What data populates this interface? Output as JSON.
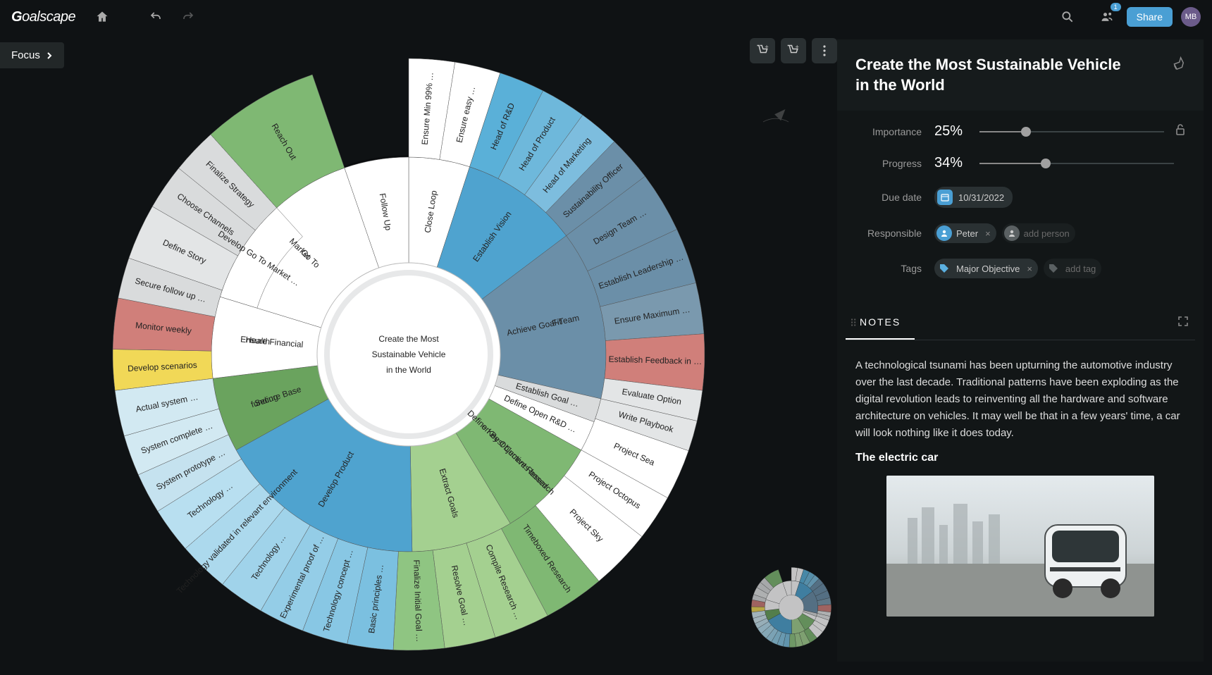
{
  "header": {
    "logo": "Goalscape",
    "share_label": "Share",
    "user_initials": "MB",
    "notif_count": "1"
  },
  "focus_label": "Focus",
  "panel": {
    "title": "Create the Most Sustainable Vehicle in the World",
    "importance_label": "Importance",
    "importance_value": "25%",
    "importance_pct": 25,
    "progress_label": "Progress",
    "progress_value": "34%",
    "progress_pct": 34,
    "due_date_label": "Due date",
    "due_date": "10/31/2022",
    "responsible_label": "Responsible",
    "responsible": [
      {
        "name": "Peter"
      }
    ],
    "responsible_placeholder": "add person",
    "tags_label": "Tags",
    "tags": [
      {
        "name": "Major Objective",
        "color": "#5bb0e0"
      }
    ],
    "tags_placeholder": "add tag",
    "tabs": [
      {
        "label": "NOTES",
        "active": true
      }
    ]
  },
  "notes": {
    "body": "A technological tsunami has been upturning the automotive industry over the last decade. Traditional patterns have been exploding as the digital revolution leads to reinventing all the hardware and software architecture on vehicles. It may well be that in a few years' time, a car will look nothing like it does today.",
    "heading": "The electric car"
  },
  "sunburst": {
    "type": "sunburst",
    "background_color": "#0f1214",
    "center_label": "Create the Most Sustainable Vehicle in the World",
    "center_color": "#ffffff",
    "rings": 3,
    "color_palette": {
      "white": "#ffffff",
      "lightblue": "#7bc0e0",
      "blue": "#4fa3cf",
      "midblue": "#6b8fa8",
      "darkblue": "#5a88a3",
      "grey": "#d0d2d3",
      "lightgrey": "#e3e5e6",
      "red": "#d07f7a",
      "green": "#7fb873",
      "darkgreen": "#6aa35e",
      "lightgreen": "#a4d090",
      "yellow": "#e8d985",
      "brightyellow": "#f1d857",
      "skyblue": "#9dd0ea",
      "paleblue": "#c5e2ef"
    },
    "ring1": [
      {
        "label": "Close Loop",
        "start": -90,
        "extent": 18,
        "color": "#ffffff"
      },
      {
        "label": "Establish Vision",
        "start": -72,
        "extent": 35,
        "color": "#4fa3cf"
      },
      {
        "label": "Achieve Goal-Team Fit",
        "start": -37,
        "extent": 50,
        "color": "#6b8fa8"
      },
      {
        "label": "Establish Goal …",
        "start": 13,
        "extent": 7,
        "color": "#d9dbdc"
      },
      {
        "label": "Define Open R&D …",
        "start": 20,
        "extent": 9,
        "color": "#ffffff"
      },
      {
        "label": "Define Key Objectives based on Best Current Research",
        "start": 29,
        "extent": 30,
        "color": "#7fb873"
      },
      {
        "label": "Extract Goals",
        "start": 59,
        "extent": 30,
        "color": "#a4d090"
      },
      {
        "label": "Develop Product",
        "start": 89,
        "extent": 62,
        "color": "#4fa3cf"
      },
      {
        "label": "Secure Base funding",
        "start": 151,
        "extent": 22,
        "color": "#6aa35e"
      },
      {
        "label": "Ensure Financial Health",
        "start": 173,
        "extent": 24,
        "color": "#ffffff"
      },
      {
        "label": "Go To Market",
        "start": 197,
        "extent": 54,
        "color": "#ffffff"
      },
      {
        "label": "Follow Up",
        "start": 251,
        "extent": 19,
        "color": "#ffffff"
      }
    ],
    "ring2": [
      {
        "label": "Ensure Min 99% …",
        "start": -90,
        "extent": 9,
        "color": "#ffffff"
      },
      {
        "label": "Ensure easy …",
        "start": -81,
        "extent": 9,
        "color": "#ffffff"
      },
      {
        "label": "Head of R&D",
        "start": -72,
        "extent": 9,
        "color": "#5ab0d8"
      },
      {
        "label": "Head of Product",
        "start": -63,
        "extent": 9,
        "color": "#6eb8db"
      },
      {
        "label": "Head of Marketing",
        "start": -54,
        "extent": 8,
        "color": "#7dbdde"
      },
      {
        "label": "Sustainability Officer",
        "start": -46,
        "extent": 9,
        "color": "#6b8fa8"
      },
      {
        "label": "Design Team …",
        "start": -37,
        "extent": 12,
        "color": "#6b8fa8"
      },
      {
        "label": "Establish Leadership …",
        "start": -25,
        "extent": 11,
        "color": "#6b8fa8"
      },
      {
        "label": "Ensure Maximum …",
        "start": -14,
        "extent": 10,
        "color": "#7a99ae"
      },
      {
        "label": "Establish Feedback in …",
        "start": -4,
        "extent": 11,
        "color": "#d07f7a"
      },
      {
        "label": "Evaluate Option",
        "start": 7,
        "extent": 6,
        "color": "#e3e5e6"
      },
      {
        "label": "Write Playbook",
        "start": 13,
        "extent": 6,
        "color": "#e3e5e6"
      },
      {
        "label": "Project Sea",
        "start": 19,
        "extent": 10,
        "color": "#ffffff"
      },
      {
        "label": "Project Octopus",
        "start": 29,
        "extent": 9,
        "color": "#ffffff"
      },
      {
        "label": "Project Sky",
        "start": 38,
        "extent": 12,
        "color": "#ffffff"
      },
      {
        "label": "Timeboxed Research",
        "start": 50,
        "extent": 12,
        "color": "#7fb873"
      },
      {
        "label": "Compile Research …",
        "start": 62,
        "extent": 11,
        "color": "#a4d090"
      },
      {
        "label": "Resolve Goal …",
        "start": 73,
        "extent": 10,
        "color": "#a4d090"
      },
      {
        "label": "Finalize Initial Goal …",
        "start": 83,
        "extent": 10,
        "color": "#8fc582"
      },
      {
        "label": "Basic principles …",
        "start": 93,
        "extent": 9,
        "color": "#7bc0e0"
      },
      {
        "label": "Technology concept …",
        "start": 102,
        "extent": 9,
        "color": "#88c7e4"
      },
      {
        "label": "Experimental proof of …",
        "start": 111,
        "extent": 9,
        "color": "#94cde7"
      },
      {
        "label": "Technology …",
        "start": 120,
        "extent": 9,
        "color": "#a0d3ea"
      },
      {
        "label": "Technology validated in relevant environment",
        "start": 129,
        "extent": 10,
        "color": "#acd9ed"
      },
      {
        "label": "Technology …",
        "start": 139,
        "extent": 9,
        "color": "#b8dff0"
      },
      {
        "label": "System prototype …",
        "start": 148,
        "extent": 8,
        "color": "#c5e2ef"
      },
      {
        "label": "System complete …",
        "start": 156,
        "extent": 8,
        "color": "#d2e9f2"
      },
      {
        "label": "Actual system …",
        "start": 164,
        "extent": 9,
        "color": "#d2e9f2"
      },
      {
        "label": "Develop scenarios",
        "start": 173,
        "extent": 8,
        "color": "#f1d857"
      },
      {
        "label": "Monitor weekly",
        "start": 181,
        "extent": 10,
        "color": "#d07f7a"
      },
      {
        "label": "Secure follow up …",
        "start": 191,
        "extent": 8,
        "color": "#d9dbdc"
      },
      {
        "label": "Define Story",
        "start": 199,
        "extent": 11,
        "color": "#e3e5e6"
      },
      {
        "label": "Choose Channels",
        "start": 210,
        "extent": 9,
        "color": "#d9dbdc"
      },
      {
        "label": "Finalize Strategy",
        "start": 219,
        "extent": 9,
        "color": "#d9dbdc"
      },
      {
        "label": "Reach Out",
        "start": 228,
        "extent": 23,
        "color": "#7fb873"
      },
      {
        "label": "Develop Go To Market …",
        "start": 228,
        "extent": 0,
        "color": "#ffffff",
        "inner_only": true,
        "start2": 210,
        "extent2": 18
      }
    ],
    "inner_strip": [
      {
        "label": "Develop Go To Market …",
        "start": 197,
        "extent": 31,
        "color": "#ffffff"
      }
    ],
    "radii": {
      "r_center": 130,
      "r1_in": 130,
      "r1_out": 280,
      "r_strip_in": 225,
      "r_strip_out": 290,
      "r2_in": 280,
      "r2_out": 420
    }
  }
}
